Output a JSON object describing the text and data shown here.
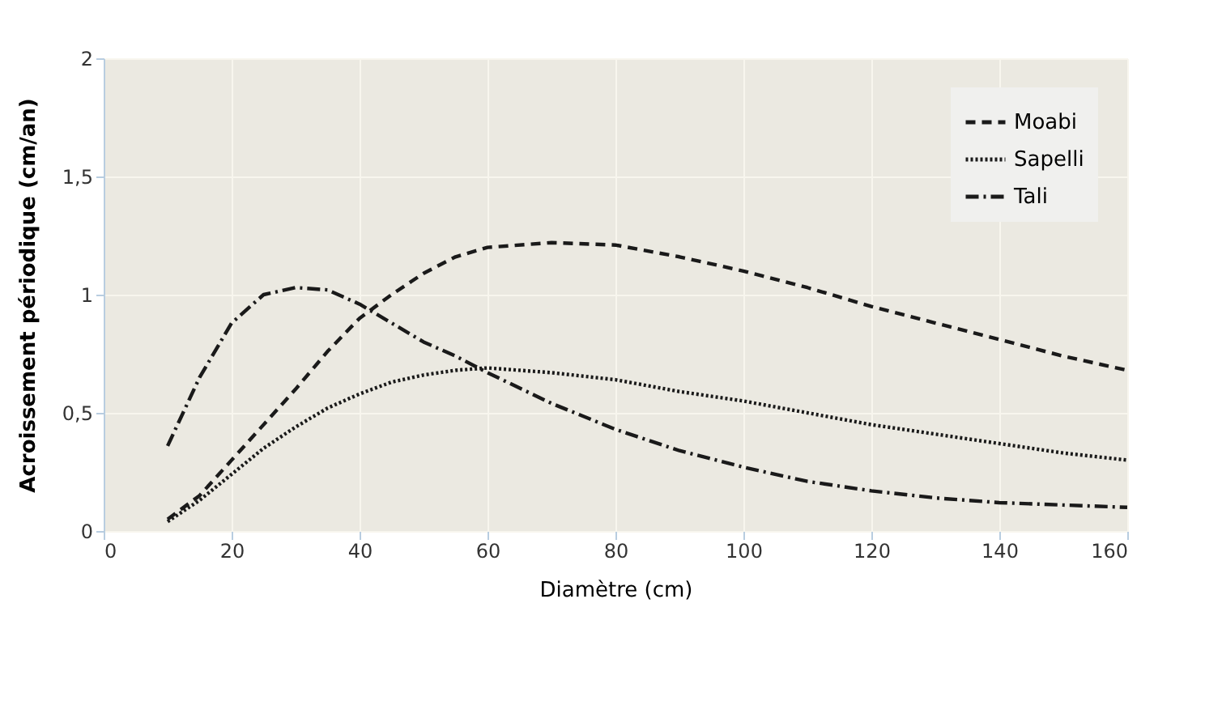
{
  "chart_data": {
    "type": "line",
    "xlabel": "Diamètre (cm)",
    "ylabel": "Acroissement périodique (cm/an)",
    "x": [
      10,
      15,
      20,
      25,
      30,
      35,
      40,
      45,
      50,
      55,
      60,
      70,
      80,
      90,
      100,
      110,
      120,
      130,
      140,
      150,
      160
    ],
    "series": [
      {
        "name": "Moabi",
        "color": "#1a1a1a",
        "line_style": "dashed",
        "values": [
          0.05,
          0.15,
          0.3,
          0.45,
          0.6,
          0.76,
          0.9,
          1.0,
          1.09,
          1.16,
          1.2,
          1.22,
          1.21,
          1.16,
          1.1,
          1.03,
          0.95,
          0.88,
          0.81,
          0.74,
          0.68
        ]
      },
      {
        "name": "Sapelli",
        "color": "#1a1a1a",
        "line_style": "dotted",
        "values": [
          0.04,
          0.13,
          0.24,
          0.35,
          0.44,
          0.52,
          0.58,
          0.63,
          0.66,
          0.68,
          0.69,
          0.67,
          0.64,
          0.59,
          0.55,
          0.5,
          0.45,
          0.41,
          0.37,
          0.33,
          0.3
        ]
      },
      {
        "name": "Tali",
        "color": "#1a1a1a",
        "line_style": "dashdot",
        "values": [
          0.36,
          0.65,
          0.88,
          1.0,
          1.03,
          1.02,
          0.96,
          0.88,
          0.8,
          0.74,
          0.67,
          0.54,
          0.43,
          0.34,
          0.27,
          0.21,
          0.17,
          0.14,
          0.12,
          0.11,
          0.1
        ]
      }
    ],
    "xlim": [
      0,
      160
    ],
    "xticks": [
      0,
      20,
      40,
      60,
      80,
      100,
      120,
      140,
      160
    ],
    "ylim": [
      0,
      2
    ],
    "yticks": [
      0,
      {
        "value": 0.5,
        "label": "0,5"
      },
      1,
      {
        "value": 1.5,
        "label": "1,5"
      },
      2
    ],
    "grid": true,
    "legend": "top right",
    "marker": "none"
  }
}
